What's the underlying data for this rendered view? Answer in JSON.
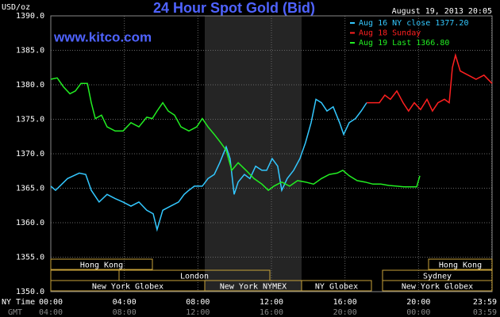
{
  "chart_data": {
    "type": "line",
    "title": "24 Hour Spot Gold (Bid)",
    "timestamp": "August 19, 2013 20:05",
    "source": "www.kitco.com",
    "y_label": "USD/oz",
    "x_label": "NY Time",
    "x2_label": "GMT",
    "xlim": [
      0,
      24
    ],
    "ylim": [
      1350,
      1390
    ],
    "xticks": [
      {
        "value": 0,
        "label": "00:00"
      },
      {
        "value": 4,
        "label": "04:00"
      },
      {
        "value": 8,
        "label": "08:00"
      },
      {
        "value": 12,
        "label": "12:00"
      },
      {
        "value": 16,
        "label": "16:00"
      },
      {
        "value": 20,
        "label": "20:00"
      },
      {
        "value": 23.98,
        "label": "23:59"
      }
    ],
    "x2tick_labels": [
      "04:00",
      "08:00",
      "12:00",
      "16:00",
      "20:00",
      "00:00",
      "03:59"
    ],
    "yticks": [
      {
        "value": 1350,
        "label": "1350.0"
      },
      {
        "value": 1355,
        "label": "1355.0"
      },
      {
        "value": 1360,
        "label": "1360.0"
      },
      {
        "value": 1365,
        "label": "1365.0"
      },
      {
        "value": 1370,
        "label": "1370.0"
      },
      {
        "value": 1375,
        "label": "1375.0"
      },
      {
        "value": 1380,
        "label": "1380.0"
      },
      {
        "value": 1385,
        "label": "1385.0"
      },
      {
        "value": 1390,
        "label": "1390.0"
      }
    ],
    "grid": true,
    "legend": "top-right",
    "sessions": [
      "Hong Kong",
      "Hong Kong",
      "London",
      "Sydney",
      "New York Globex",
      "New York NYMEX",
      "NY Globex",
      "New York Globex"
    ],
    "series": [
      {
        "name": "Aug 16 NY close 1377.20",
        "color": "#33c8ff",
        "x": [
          0,
          0.26,
          0.91,
          1.55,
          1.9,
          2.2,
          2.63,
          3.06,
          3.5,
          3.93,
          4.36,
          4.79,
          5.22,
          5.57,
          5.78,
          6.09,
          6.52,
          6.95,
          7.25,
          7.51,
          7.81,
          8.24,
          8.55,
          8.89,
          9.19,
          9.54,
          9.75,
          9.97,
          10.19,
          10.53,
          10.83,
          11.14,
          11.48,
          11.74,
          12.04,
          12.34,
          12.56,
          12.86,
          13.21,
          13.55,
          13.85,
          14.16,
          14.42,
          14.72,
          15.02,
          15.36,
          15.71,
          15.93,
          16.23,
          16.57,
          16.88,
          17.18
        ],
        "values": [
          1365.3,
          1364.7,
          1366.4,
          1367.2,
          1367.0,
          1364.7,
          1363.0,
          1364.1,
          1363.5,
          1363.0,
          1362.4,
          1363.0,
          1361.8,
          1361.3,
          1359.0,
          1361.8,
          1362.4,
          1363.0,
          1364.1,
          1364.7,
          1365.3,
          1365.3,
          1366.4,
          1367.0,
          1368.7,
          1371.0,
          1369.3,
          1364.1,
          1365.9,
          1367.0,
          1366.4,
          1368.2,
          1367.6,
          1367.6,
          1369.3,
          1368.2,
          1364.7,
          1366.4,
          1367.6,
          1369.3,
          1371.6,
          1374.5,
          1377.9,
          1377.4,
          1376.2,
          1376.8,
          1374.5,
          1372.8,
          1374.5,
          1375.1,
          1376.2,
          1377.4
        ]
      },
      {
        "name": "Aug 18 Sunday",
        "color": "#ff2020",
        "x": [
          17.18,
          17.52,
          17.87,
          18.17,
          18.47,
          18.82,
          19.16,
          19.46,
          19.77,
          20.11,
          20.46,
          20.76,
          21.06,
          21.41,
          21.67,
          21.84,
          22.01,
          22.27,
          22.7,
          23.13,
          23.56,
          24
        ],
        "values": [
          1377.4,
          1377.4,
          1377.4,
          1378.5,
          1377.9,
          1379.1,
          1377.4,
          1376.2,
          1377.4,
          1376.4,
          1377.9,
          1376.2,
          1377.4,
          1377.9,
          1377.4,
          1382.5,
          1384.3,
          1382.0,
          1381.4,
          1380.8,
          1381.4,
          1380.2
        ]
      },
      {
        "name": "Aug 19 Last 1366.80",
        "color": "#22ee22",
        "x": [
          0,
          0.35,
          0.69,
          1.04,
          1.34,
          1.64,
          1.99,
          2.2,
          2.42,
          2.76,
          3.06,
          3.5,
          3.93,
          4.36,
          4.79,
          5.22,
          5.52,
          5.78,
          6.09,
          6.39,
          6.73,
          7.08,
          7.51,
          7.94,
          8.24,
          8.55,
          8.89,
          9.24,
          9.54,
          9.84,
          10.19,
          10.62,
          11.05,
          11.48,
          11.83,
          12.13,
          12.56,
          12.99,
          13.42,
          13.85,
          14.29,
          14.72,
          15.15,
          15.58,
          15.88,
          16.23,
          16.66,
          17.09,
          17.52,
          17.95,
          18.39,
          18.82,
          19.25,
          19.68,
          19.9,
          20.07
        ],
        "values": [
          1380.8,
          1381.0,
          1379.7,
          1378.7,
          1379.1,
          1380.2,
          1380.2,
          1377.4,
          1375.1,
          1375.6,
          1373.9,
          1373.3,
          1373.3,
          1374.5,
          1373.9,
          1375.3,
          1375.1,
          1376.2,
          1377.4,
          1376.2,
          1375.6,
          1373.9,
          1373.3,
          1373.9,
          1375.1,
          1373.9,
          1372.8,
          1371.6,
          1370.5,
          1367.6,
          1368.7,
          1367.6,
          1366.4,
          1365.6,
          1364.7,
          1365.3,
          1365.9,
          1365.3,
          1366.1,
          1365.9,
          1365.6,
          1366.4,
          1367.0,
          1367.2,
          1367.6,
          1366.8,
          1366.1,
          1365.9,
          1365.6,
          1365.6,
          1365.4,
          1365.3,
          1365.2,
          1365.2,
          1365.2,
          1366.8
        ]
      }
    ]
  }
}
